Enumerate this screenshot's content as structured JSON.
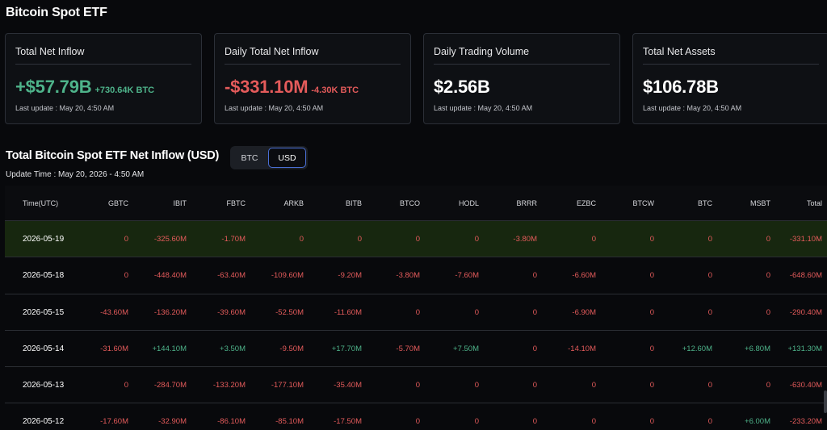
{
  "page_title": "Bitcoin Spot ETF",
  "cards": [
    {
      "label": "Total Net Inflow",
      "value": "+$57.79B",
      "sub": "+730.64K BTC",
      "tone": "pos",
      "updated": "Last update : May 20, 4:50 AM"
    },
    {
      "label": "Daily Total Net Inflow",
      "value": "-$331.10M",
      "sub": "-4.30K BTC",
      "tone": "neg",
      "updated": "Last update : May 20, 4:50 AM"
    },
    {
      "label": "Daily Trading Volume",
      "value": "$2.56B",
      "sub": "",
      "tone": "white",
      "updated": "Last update : May 20, 4:50 AM"
    },
    {
      "label": "Total Net Assets",
      "value": "$106.78B",
      "sub": "",
      "tone": "white",
      "updated": "Last update : May 20, 4:50 AM"
    }
  ],
  "section_title": "Total Bitcoin Spot ETF Net Inflow (USD)",
  "toggle": {
    "btc_label": "BTC",
    "usd_label": "USD",
    "selected": "USD"
  },
  "update_time": "Update Time : May 20, 2026 - 4:50 AM",
  "colors": {
    "positive": "#4eb38a",
    "negative": "#e45b5b",
    "highlight_row": "#17270f",
    "toggle_active_border": "#4a6fd6"
  },
  "table": {
    "columns": [
      "Time(UTC)",
      "GBTC",
      "IBIT",
      "FBTC",
      "ARKB",
      "BITB",
      "BTCO",
      "HODL",
      "BRRR",
      "EZBC",
      "BTCW",
      "BTC",
      "MSBT",
      "Total"
    ],
    "rows": [
      [
        "2026-05-19",
        "0",
        "-325.60M",
        "-1.70M",
        "0",
        "0",
        "0",
        "0",
        "-3.80M",
        "0",
        "0",
        "0",
        "0",
        "-331.10M"
      ],
      [
        "2026-05-18",
        "0",
        "-448.40M",
        "-63.40M",
        "-109.60M",
        "-9.20M",
        "-3.80M",
        "-7.60M",
        "0",
        "-6.60M",
        "0",
        "0",
        "0",
        "-648.60M"
      ],
      [
        "2026-05-15",
        "-43.60M",
        "-136.20M",
        "-39.60M",
        "-52.50M",
        "-11.60M",
        "0",
        "0",
        "0",
        "-6.90M",
        "0",
        "0",
        "0",
        "-290.40M"
      ],
      [
        "2026-05-14",
        "-31.60M",
        "+144.10M",
        "+3.50M",
        "-9.50M",
        "+17.70M",
        "-5.70M",
        "+7.50M",
        "0",
        "-14.10M",
        "0",
        "+12.60M",
        "+6.80M",
        "+131.30M"
      ],
      [
        "2026-05-13",
        "0",
        "-284.70M",
        "-133.20M",
        "-177.10M",
        "-35.40M",
        "0",
        "0",
        "0",
        "0",
        "0",
        "0",
        "0",
        "-630.40M"
      ],
      [
        "2026-05-12",
        "-17.60M",
        "-32.90M",
        "-86.10M",
        "-85.10M",
        "-17.50M",
        "0",
        "0",
        "0",
        "0",
        "0",
        "0",
        "+6.00M",
        "-233.20M"
      ]
    ]
  }
}
